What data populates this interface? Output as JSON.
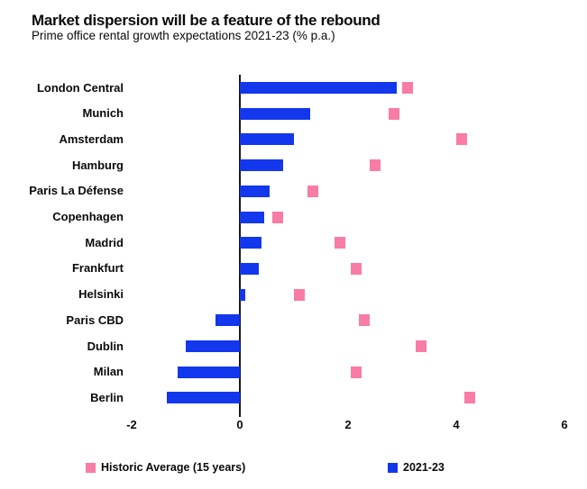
{
  "header": {
    "title": "Market dispersion will be a feature of the rebound",
    "subtitle": "Prime office rental growth expectations 2021-23 (% p.a.)"
  },
  "chart_data": {
    "type": "bar",
    "orientation": "horizontal",
    "title": "Market dispersion will be a feature of the rebound",
    "subtitle": "Prime office rental growth expectations 2021-23 (% p.a.)",
    "categories": [
      "London Central",
      "Munich",
      "Amsterdam",
      "Hamburg",
      "Paris La Défense",
      "Copenhagen",
      "Madrid",
      "Frankfurt",
      "Helsinki",
      "Paris CBD",
      "Dublin",
      "Milan",
      "Berlin"
    ],
    "series": [
      {
        "name": "2021-23",
        "style": "bar",
        "color": "#1337ec",
        "values": [
          2.9,
          1.3,
          1.0,
          0.8,
          0.55,
          0.45,
          0.4,
          0.35,
          0.1,
          -0.45,
          -1.0,
          -1.15,
          -1.35
        ]
      },
      {
        "name": "Historic Average (15 years)",
        "style": "square-marker",
        "color": "#f87ca6",
        "values": [
          3.1,
          2.85,
          4.1,
          2.5,
          1.35,
          0.7,
          1.85,
          2.15,
          1.1,
          2.3,
          3.35,
          2.15,
          4.25
        ]
      }
    ],
    "xlim": [
      -2,
      6
    ],
    "xticks": [
      -2,
      0,
      2,
      4,
      6
    ],
    "grid": false,
    "legend_position": "bottom",
    "axis_color": "#1a1a1a"
  },
  "legend": {
    "items": [
      {
        "label": "Historic Average (15 years)",
        "color": "#f87ca6"
      },
      {
        "label": "2021-23",
        "color": "#1337ec"
      }
    ]
  }
}
